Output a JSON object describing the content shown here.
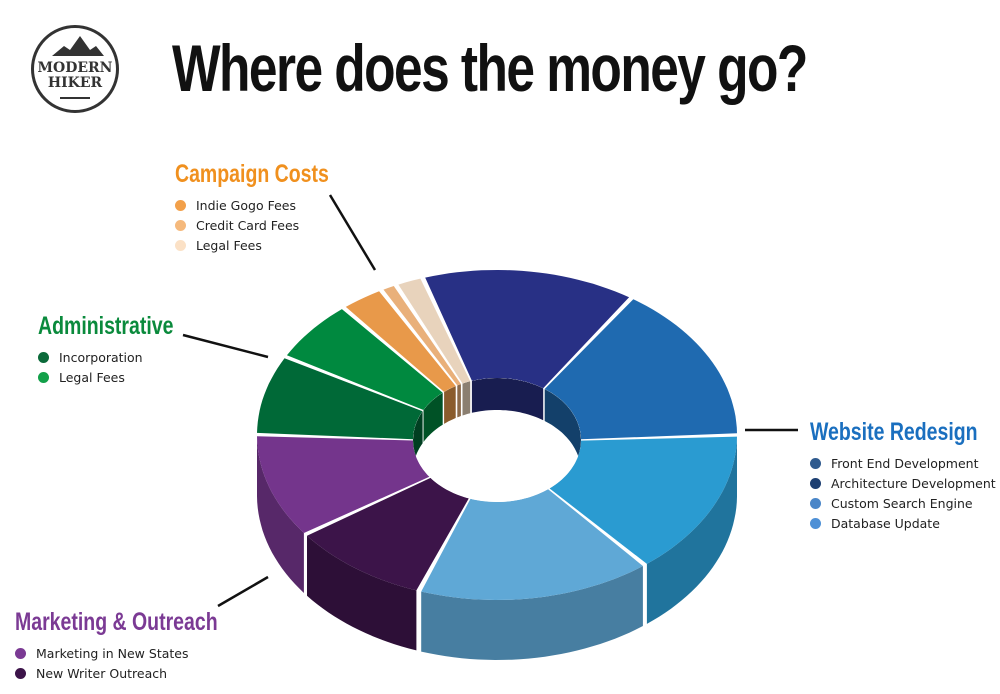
{
  "title": "Where does the money go?",
  "logo": {
    "line1": "MODERN",
    "line2": "HIKER"
  },
  "chart_data": {
    "type": "pie",
    "style": "3d-donut",
    "title": "Where does the money go?",
    "groups": [
      {
        "name": "Website Redesign",
        "color": "#1a6fbf",
        "items": [
          {
            "label": "Front End Development",
            "value": 14.4,
            "color": "#283085",
            "legend_color": "#2f5a8e"
          },
          {
            "label": "Architecture Development",
            "value": 15.5,
            "color": "#1f6ab0",
            "legend_color": "#1d3f72"
          },
          {
            "label": "Custom Search Engine",
            "value": 14.4,
            "color": "#2a9bd1",
            "legend_color": "#4a86c8"
          },
          {
            "label": "Database Update",
            "value": 15.8,
            "color": "#5fa8d6",
            "legend_color": "#4e90d6"
          }
        ]
      },
      {
        "name": "Marketing & Outreach",
        "color": "#7b3a94",
        "items": [
          {
            "label": "New Writer Outreach",
            "value": 9.4,
            "color": "#3c1449",
            "legend_color": "#3c1449"
          },
          {
            "label": "Marketing in New States",
            "value": 10.3,
            "color": "#74358c",
            "legend_color": "#7b3a94"
          }
        ]
      },
      {
        "name": "Administrative",
        "color": "#0a8a3c",
        "items": [
          {
            "label": "Incorporation",
            "value": 7.8,
            "color": "#006937",
            "legend_color": "#0b6a3a"
          },
          {
            "label": "Legal Fees",
            "value": 6.1,
            "color": "#00893f",
            "legend_color": "#13a04a"
          }
        ]
      },
      {
        "name": "Campaign Costs",
        "color": "#f0901e",
        "items": [
          {
            "label": "Indie Gogo Fees",
            "value": 3.0,
            "color": "#e8994a",
            "legend_color": "#f2a04a"
          },
          {
            "label": "Credit Card Fees",
            "value": 1.1,
            "color": "#e9b07a",
            "legend_color": "#f5b97c"
          },
          {
            "label": "Legal Fees",
            "value": 1.9,
            "color": "#e8d3bc",
            "legend_color": "#fbe1c6"
          }
        ]
      }
    ]
  }
}
